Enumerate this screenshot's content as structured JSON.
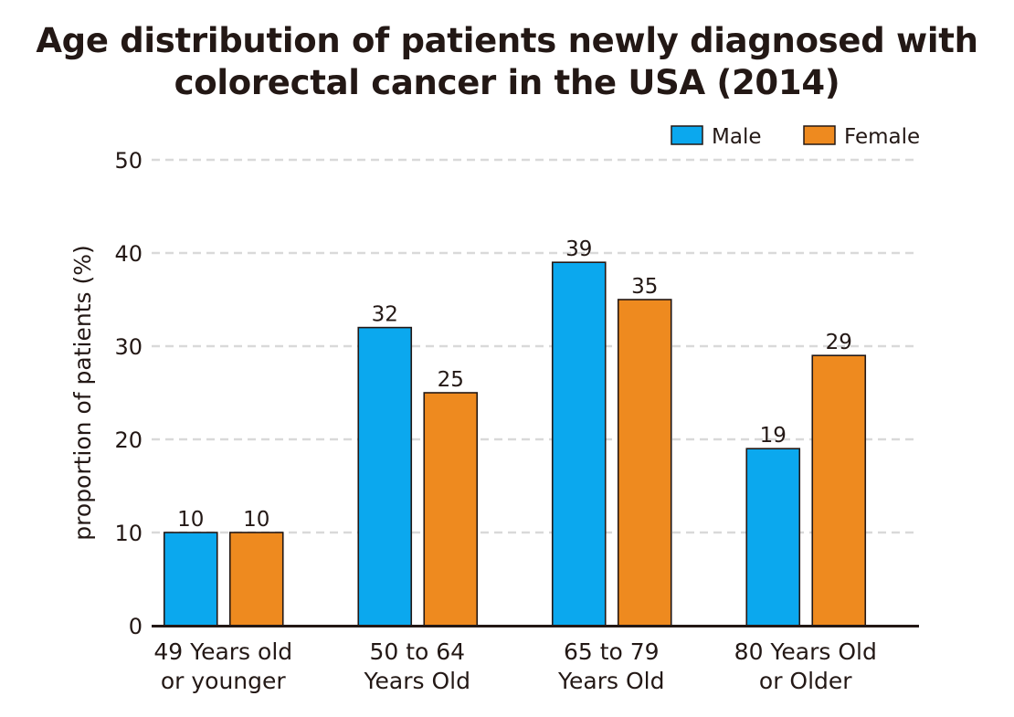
{
  "chart_data": {
    "type": "bar",
    "title_line1": "Age distribution of patients newly diagnosed with",
    "title_line2": "colorectal cancer in the USA (2014)",
    "xlabel": "",
    "ylabel": "proportion of patients (%)",
    "ylim": [
      0,
      50
    ],
    "yticks": [
      0,
      10,
      20,
      30,
      40,
      50
    ],
    "grid": true,
    "legend_position": "top-right",
    "categories": [
      [
        "49 Years old",
        "or younger"
      ],
      [
        "50 to 64",
        "Years Old"
      ],
      [
        "65 to 79",
        "Years Old"
      ],
      [
        "80 Years Old",
        "or Older"
      ]
    ],
    "series": [
      {
        "name": "Male",
        "color": "#0ba8ee",
        "values": [
          10,
          32,
          39,
          19
        ]
      },
      {
        "name": "Female",
        "color": "#ee8a1f",
        "values": [
          10,
          25,
          35,
          29
        ]
      }
    ]
  }
}
